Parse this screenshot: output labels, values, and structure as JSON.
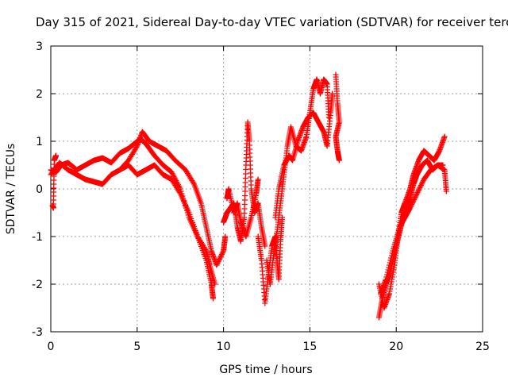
{
  "chart_data": {
    "type": "scatter",
    "title": "Day 315 of 2021, Sidereal Day-to-day VTEC variation (SDTVAR) for receiver terc",
    "xlabel": "GPS time / hours",
    "ylabel": "SDTVAR / TECUs",
    "xlim": [
      0,
      25
    ],
    "ylim": [
      -3,
      3
    ],
    "xticks": [
      "0",
      "5",
      "10",
      "15",
      "20",
      "25"
    ],
    "yticks": [
      "-3",
      "-2",
      "-1",
      "0",
      "1",
      "2",
      "3"
    ],
    "grid": true,
    "marker": "+",
    "color": "#ff0000",
    "series": [
      {
        "points": [
          [
            0.1,
            -0.35
          ],
          [
            0.15,
            -0.4
          ],
          [
            0.2,
            0.6
          ],
          [
            0.3,
            0.7
          ]
        ]
      },
      {
        "points": [
          [
            0,
            0.4
          ],
          [
            0.3,
            0.35
          ],
          [
            0.6,
            0.5
          ],
          [
            1,
            0.55
          ],
          [
            1.5,
            0.4
          ],
          [
            2,
            0.5
          ],
          [
            2.5,
            0.6
          ],
          [
            3,
            0.65
          ],
          [
            3.5,
            0.55
          ],
          [
            4,
            0.75
          ],
          [
            4.5,
            0.85
          ],
          [
            5,
            1.0
          ],
          [
            5.2,
            1.05
          ],
          [
            5.5,
            0.95
          ],
          [
            6,
            0.7
          ],
          [
            6.5,
            0.5
          ],
          [
            7,
            0.35
          ],
          [
            7.5,
            0.0
          ],
          [
            8,
            -0.6
          ],
          [
            8.5,
            -1.0
          ],
          [
            9,
            -1.5
          ],
          [
            9.3,
            -2.0
          ],
          [
            9.4,
            -2.3
          ]
        ]
      },
      {
        "points": [
          [
            0,
            0.3
          ],
          [
            0.5,
            0.55
          ],
          [
            1,
            0.4
          ],
          [
            1.5,
            0.3
          ],
          [
            2,
            0.2
          ],
          [
            2.5,
            0.15
          ],
          [
            3,
            0.1
          ],
          [
            3.5,
            0.3
          ],
          [
            4,
            0.4
          ],
          [
            4.5,
            0.6
          ],
          [
            5,
            0.9
          ],
          [
            5.3,
            1.2
          ],
          [
            5.7,
            1.0
          ],
          [
            6.2,
            0.9
          ],
          [
            6.7,
            0.8
          ],
          [
            7.2,
            0.6
          ],
          [
            7.8,
            0.4
          ],
          [
            8.3,
            0.1
          ],
          [
            8.7,
            -0.3
          ],
          [
            9,
            -0.8
          ],
          [
            9.3,
            -1.3
          ],
          [
            9.6,
            -1.6
          ],
          [
            10,
            -1.3
          ],
          [
            10.1,
            -1.0
          ]
        ]
      },
      {
        "points": [
          [
            4,
            0.4
          ],
          [
            4.5,
            0.5
          ],
          [
            5,
            0.3
          ],
          [
            5.5,
            0.4
          ],
          [
            6,
            0.5
          ],
          [
            6.5,
            0.3
          ],
          [
            7,
            0.2
          ],
          [
            7.5,
            -0.1
          ],
          [
            8,
            -0.5
          ],
          [
            8.5,
            -1.0
          ],
          [
            9,
            -1.3
          ],
          [
            9.2,
            -1.6
          ],
          [
            9.5,
            -2.0
          ]
        ]
      },
      {
        "points": [
          [
            10,
            -0.7
          ],
          [
            10.2,
            -0.5
          ],
          [
            10.4,
            -0.4
          ],
          [
            10.6,
            -0.3
          ],
          [
            10.8,
            -0.8
          ],
          [
            11,
            -1.1
          ],
          [
            11.2,
            -0.6
          ],
          [
            11.3,
            0.5
          ],
          [
            11.4,
            1.4
          ],
          [
            11.5,
            1.0
          ],
          [
            11.6,
            0.0
          ],
          [
            11.8,
            -0.5
          ],
          [
            12,
            -0.3
          ],
          [
            12.2,
            -0.8
          ],
          [
            12.4,
            -1.2
          ]
        ]
      },
      {
        "points": [
          [
            10.2,
            -0.2
          ],
          [
            10.3,
            0.0
          ],
          [
            10.6,
            -0.5
          ],
          [
            10.8,
            -0.3
          ],
          [
            11,
            -0.7
          ],
          [
            11.3,
            -1.0
          ],
          [
            11.6,
            -0.6
          ],
          [
            11.9,
            -0.1
          ],
          [
            12,
            0.2
          ]
        ]
      },
      {
        "points": [
          [
            12.0,
            -1.0
          ],
          [
            12.2,
            -1.5
          ],
          [
            12.4,
            -2.4
          ],
          [
            12.6,
            -1.8
          ],
          [
            12.8,
            -1.2
          ],
          [
            13.0,
            -1.0
          ],
          [
            13.1,
            -1.5
          ],
          [
            13.2,
            -1.9
          ],
          [
            13.3,
            -1.1
          ],
          [
            13.4,
            -0.6
          ]
        ]
      },
      {
        "points": [
          [
            12.5,
            -1.5
          ],
          [
            12.7,
            -2.0
          ],
          [
            12.9,
            -1.4
          ],
          [
            13.1,
            -0.9
          ],
          [
            13.3,
            -0.3
          ],
          [
            13.5,
            0.3
          ],
          [
            13.7,
            0.9
          ],
          [
            13.9,
            1.3
          ],
          [
            14.2,
            0.9
          ],
          [
            14.5,
            0.8
          ],
          [
            14.8,
            1.1
          ],
          [
            15,
            1.6
          ],
          [
            15.2,
            2.1
          ],
          [
            15.4,
            2.3
          ],
          [
            15.6,
            2.0
          ],
          [
            15.8,
            2.3
          ],
          [
            16,
            2.2
          ],
          [
            16.1,
            1.5
          ]
        ]
      },
      {
        "points": [
          [
            13.0,
            -0.6
          ],
          [
            13.2,
            0.0
          ],
          [
            13.5,
            0.5
          ],
          [
            13.8,
            0.7
          ],
          [
            14,
            0.6
          ],
          [
            14.3,
            1.0
          ],
          [
            14.6,
            1.3
          ],
          [
            14.9,
            1.5
          ],
          [
            15.2,
            1.6
          ],
          [
            15.5,
            1.4
          ],
          [
            15.8,
            1.2
          ],
          [
            16,
            0.9
          ],
          [
            16.2,
            1.6
          ],
          [
            16.3,
            2.0
          ]
        ]
      },
      {
        "points": [
          [
            16.5,
            2.4
          ],
          [
            16.6,
            1.8
          ],
          [
            16.7,
            1.4
          ],
          [
            16.5,
            1.1
          ],
          [
            16.6,
            0.8
          ],
          [
            16.7,
            0.6
          ]
        ]
      },
      {
        "points": [
          [
            19,
            -2.7
          ],
          [
            19.2,
            -2.3
          ],
          [
            19.4,
            -2.0
          ],
          [
            19.6,
            -1.8
          ],
          [
            19.8,
            -1.5
          ],
          [
            20,
            -1.2
          ],
          [
            20.2,
            -0.9
          ],
          [
            20.4,
            -0.6
          ],
          [
            20.6,
            -0.4
          ],
          [
            20.8,
            -0.2
          ],
          [
            21,
            0.1
          ],
          [
            21.2,
            0.3
          ],
          [
            21.5,
            0.5
          ],
          [
            21.8,
            0.6
          ],
          [
            22.1,
            0.4
          ],
          [
            22.4,
            0.5
          ],
          [
            22.7,
            0.5
          ]
        ]
      },
      {
        "points": [
          [
            19,
            -2.0
          ],
          [
            19.3,
            -2.5
          ],
          [
            19.6,
            -2.2
          ],
          [
            19.9,
            -1.6
          ],
          [
            20.1,
            -1.0
          ],
          [
            20.3,
            -0.5
          ],
          [
            20.5,
            -0.3
          ],
          [
            20.8,
            0.0
          ],
          [
            21,
            0.3
          ],
          [
            21.3,
            0.6
          ],
          [
            21.6,
            0.8
          ],
          [
            21.9,
            0.7
          ],
          [
            22.2,
            0.6
          ],
          [
            22.5,
            0.8
          ],
          [
            22.8,
            1.1
          ]
        ]
      },
      {
        "points": [
          [
            19.1,
            -2.2
          ],
          [
            19.4,
            -1.9
          ],
          [
            19.8,
            -1.3
          ],
          [
            20.2,
            -0.8
          ],
          [
            20.5,
            -0.6
          ],
          [
            20.8,
            -0.4
          ],
          [
            21.2,
            -0.1
          ],
          [
            21.6,
            0.2
          ],
          [
            22,
            0.4
          ],
          [
            22.4,
            0.5
          ],
          [
            22.8,
            0.4
          ],
          [
            22.9,
            -0.05
          ]
        ]
      }
    ]
  }
}
